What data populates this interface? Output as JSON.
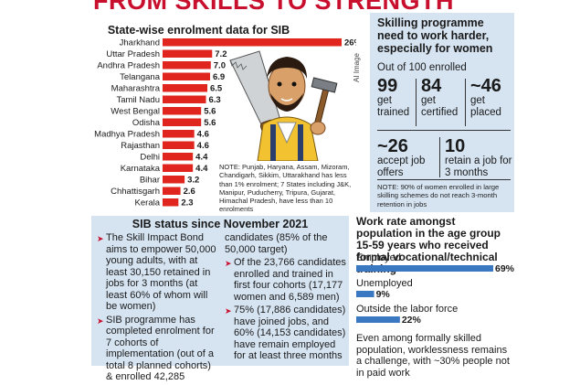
{
  "banner": {
    "part1": "FROM SKILLS",
    "part2": "TO STRENGTH"
  },
  "state_note": "NOTE: Punjab, Haryana, Assam, Mizoram, Chandigarh, Sikkim, Uttarakhand has less than 1% enrolment; 7 States including J&K, Manipur, Puducherry, Tripura, Gujarat, Himachal Pradesh, have less than 10 enrolments",
  "ai_tag": "AI Image",
  "right_panel": {
    "title": "Skilling programme need to work harder, especially for women",
    "subtitle": "Out of 100 enrolled",
    "stats": [
      {
        "num": "99",
        "label": "get trained"
      },
      {
        "num": "84",
        "label": "get certified"
      },
      {
        "num": "~46",
        "label": "get placed"
      },
      {
        "num": "~26",
        "label": "accept job offers"
      },
      {
        "num": "10",
        "label": "retain a job for 3 months"
      }
    ],
    "note": "NOTE: 90% of women enrolled in large skilling schemes do not reach 3-month retention in jobs"
  },
  "sib": {
    "title": "SIB status since November 2021",
    "items_left": [
      "The Skill Impact Bond aims to empower 50,000 young adults, with at least 30,150 retained in jobs for 3 months (at least 60% of whom will be women)",
      "SIB programme has completed enrolment for 7 cohorts of implementation (out of a total 8 planned cohorts) & enrolled 42,285"
    ],
    "continuation": "candidates (85% of the 50,000 target)",
    "items_right": [
      "Of the 23,766 candidates enrolled and trained in first four cohorts (17,177 women and 6,589 men)",
      "75% (17,886 candidates) have joined jobs, and 60% (14,153 candidates) have remain employed for at least three months"
    ]
  },
  "work": {
    "title": "Work rate amongst population in the age group 15-59 years who received formal vocational/technical training",
    "note": "Even among formally skilled population, worklessness remains a challenge, with ~30% people not in paid work"
  },
  "colors": {
    "state_bar": "#e0241e",
    "work_bar": "#3a78c2",
    "panel_bg": "#d6e4f2",
    "accent": "#c8102e"
  },
  "chart_data": [
    {
      "type": "bar",
      "orientation": "horizontal",
      "title": "State-wise enrolment data for SIB",
      "categories": [
        "Jharkhand",
        "Uttar Pradesh",
        "Andhra Pradesh",
        "Telangana",
        "Maharashtra",
        "Tamil Nadu",
        "West Bengal",
        "Odisha",
        "Madhya Pradesh",
        "Rajasthan",
        "Delhi",
        "Karnataka",
        "Bihar",
        "Chhattisgarh",
        "Kerala"
      ],
      "values": [
        26,
        7.2,
        7.0,
        6.9,
        6.5,
        6.3,
        5.6,
        5.6,
        4.6,
        4.6,
        4.4,
        4.4,
        3.2,
        2.6,
        2.3
      ],
      "value_labels": [
        "26%",
        "7.2",
        "7.0",
        "6.9",
        "6.5",
        "6.3",
        "5.6",
        "5.6",
        "4.6",
        "4.6",
        "4.4",
        "4.4",
        "3.2",
        "2.6",
        "2.3"
      ]
    },
    {
      "type": "bar",
      "orientation": "horizontal",
      "title": "Work rate amongst population in the age group 15-59 years who received formal vocational/technical training",
      "categories": [
        "Employed",
        "Unemployed",
        "Outside the labor force"
      ],
      "values": [
        69,
        9,
        22
      ],
      "value_labels": [
        "69%",
        "9%",
        "22%"
      ]
    }
  ]
}
